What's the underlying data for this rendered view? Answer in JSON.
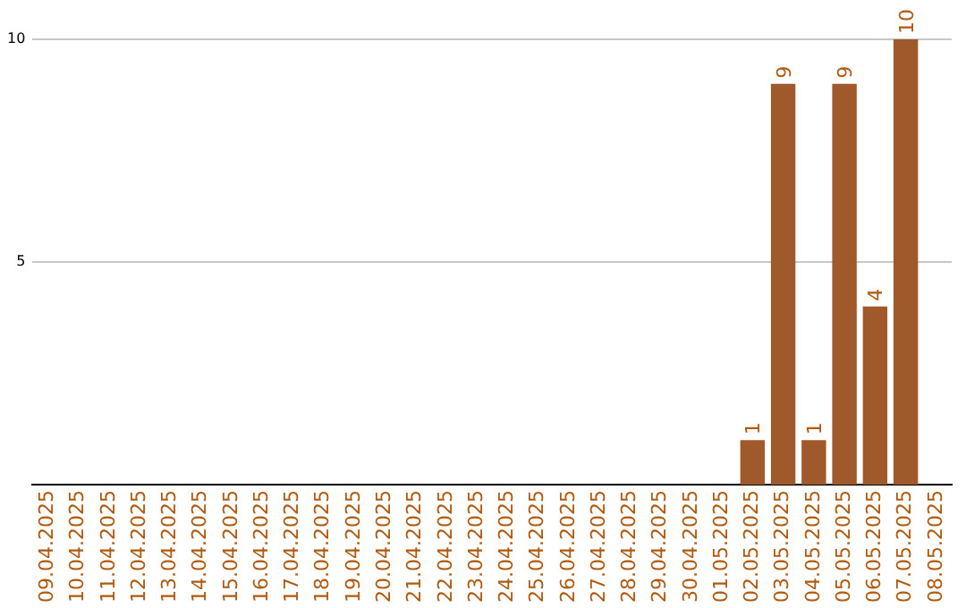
{
  "chart_data": {
    "type": "bar",
    "categories": [
      "09.04.2025",
      "10.04.2025",
      "11.04.2025",
      "12.04.2025",
      "13.04.2025",
      "14.04.2025",
      "15.04.2025",
      "16.04.2025",
      "17.04.2025",
      "18.04.2025",
      "19.04.2025",
      "20.04.2025",
      "21.04.2025",
      "22.04.2025",
      "23.04.2025",
      "24.04.2025",
      "25.04.2025",
      "26.04.2025",
      "27.04.2025",
      "28.04.2025",
      "29.04.2025",
      "30.04.2025",
      "01.05.2025",
      "02.05.2025",
      "03.05.2025",
      "04.05.2025",
      "05.05.2025",
      "06.05.2025",
      "07.05.2025",
      "08.05.2025"
    ],
    "values": [
      0,
      0,
      0,
      0,
      0,
      0,
      0,
      0,
      0,
      0,
      0,
      0,
      0,
      0,
      0,
      0,
      0,
      0,
      0,
      0,
      0,
      0,
      0,
      1,
      9,
      1,
      9,
      4,
      10,
      0
    ],
    "value_labels": [
      null,
      null,
      null,
      null,
      null,
      null,
      null,
      null,
      null,
      null,
      null,
      null,
      null,
      null,
      null,
      null,
      null,
      null,
      null,
      null,
      null,
      null,
      null,
      "1",
      "9",
      "1",
      "9",
      "4",
      "10",
      null
    ],
    "color": "#a0592a",
    "ylim": [
      0,
      10
    ],
    "yticks": [
      5,
      10
    ],
    "grid": "y",
    "legend": false
  }
}
